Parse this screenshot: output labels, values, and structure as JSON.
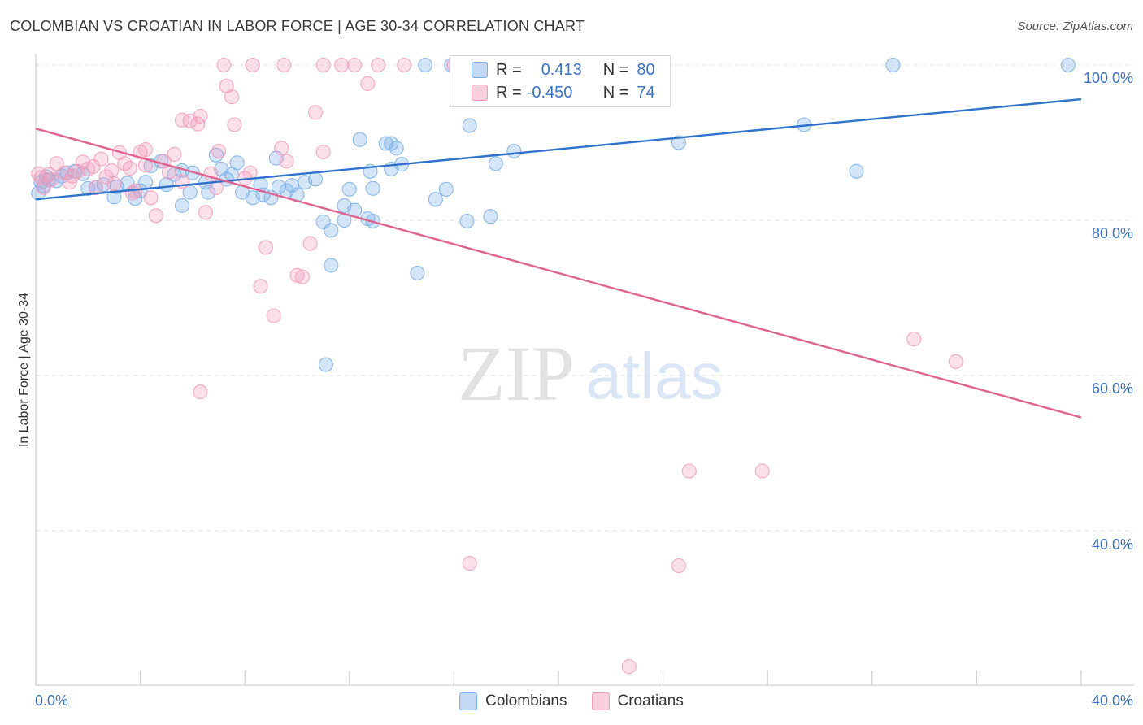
{
  "title": "COLOMBIAN VS CROATIAN IN LABOR FORCE | AGE 30-34 CORRELATION CHART",
  "source": "Source: ZipAtlas.com",
  "watermark": {
    "zip": "ZIP",
    "atlas": "atlas"
  },
  "legend": {
    "r_label": "R =",
    "n_label": "N =",
    "colombians": {
      "r": "0.413",
      "n": "80"
    },
    "croatians": {
      "r": "-0.450",
      "n": "74"
    }
  },
  "chart_data": {
    "type": "scatter",
    "title": "COLOMBIAN VS CROATIAN IN LABOR FORCE | AGE 30-34 CORRELATION CHART",
    "xlabel": "",
    "ylabel": "In Labor Force | Age 30-34",
    "xlim": [
      0,
      40
    ],
    "ylim": [
      20,
      102
    ],
    "x_tick_labels": [
      "0.0%",
      "40.0%"
    ],
    "y_ticks": [
      40,
      60,
      80,
      100
    ],
    "y_tick_labels": [
      "40.0%",
      "60.0%",
      "80.0%",
      "100.0%"
    ],
    "grid": true,
    "legend_position": "top-center",
    "series": [
      {
        "name": "Colombians",
        "color": "#7aaee8",
        "trend_color": "#2f72cc",
        "trend": {
          "x": [
            0,
            40
          ],
          "y": [
            82.7,
            95.6
          ]
        },
        "points": [
          [
            0.2,
            84.9
          ],
          [
            0.3,
            84.4
          ],
          [
            0.5,
            85.2
          ],
          [
            0.8,
            85.1
          ],
          [
            1.0,
            85.7
          ],
          [
            1.2,
            86.1
          ],
          [
            1.5,
            86.3
          ],
          [
            1.8,
            86.0
          ],
          [
            2.0,
            84.1
          ],
          [
            2.3,
            84.2
          ],
          [
            2.6,
            84.6
          ],
          [
            3.0,
            83.0
          ],
          [
            3.1,
            84.3
          ],
          [
            3.5,
            84.8
          ],
          [
            3.8,
            82.8
          ],
          [
            4.0,
            83.8
          ],
          [
            4.2,
            84.9
          ],
          [
            4.4,
            87.0
          ],
          [
            4.8,
            87.6
          ],
          [
            5.0,
            84.6
          ],
          [
            5.3,
            85.9
          ],
          [
            5.6,
            86.4
          ],
          [
            5.6,
            81.9
          ],
          [
            5.9,
            83.6
          ],
          [
            6.0,
            86.1
          ],
          [
            6.5,
            84.9
          ],
          [
            6.6,
            83.6
          ],
          [
            6.9,
            88.4
          ],
          [
            7.1,
            86.6
          ],
          [
            7.3,
            85.3
          ],
          [
            7.5,
            85.9
          ],
          [
            7.7,
            87.4
          ],
          [
            7.9,
            83.6
          ],
          [
            8.3,
            82.9
          ],
          [
            8.6,
            84.6
          ],
          [
            8.7,
            83.3
          ],
          [
            9.0,
            82.9
          ],
          [
            9.2,
            88.0
          ],
          [
            9.3,
            84.3
          ],
          [
            9.6,
            83.8
          ],
          [
            9.8,
            84.5
          ],
          [
            10.0,
            83.3
          ],
          [
            10.3,
            84.9
          ],
          [
            10.7,
            85.3
          ],
          [
            11.0,
            79.8
          ],
          [
            11.3,
            78.7
          ],
          [
            11.8,
            80.0
          ],
          [
            12.0,
            84.0
          ],
          [
            12.4,
            90.4
          ],
          [
            12.7,
            80.2
          ],
          [
            12.9,
            84.1
          ],
          [
            13.6,
            89.9
          ],
          [
            13.8,
            89.3
          ],
          [
            11.1,
            61.4
          ],
          [
            11.3,
            74.2
          ],
          [
            11.8,
            81.9
          ],
          [
            12.2,
            81.3
          ],
          [
            12.8,
            86.3
          ],
          [
            12.9,
            79.9
          ],
          [
            13.4,
            89.9
          ],
          [
            13.6,
            86.6
          ],
          [
            14.0,
            87.2
          ],
          [
            14.6,
            73.2
          ],
          [
            15.3,
            82.7
          ],
          [
            15.7,
            84.0
          ],
          [
            16.5,
            79.9
          ],
          [
            16.6,
            92.2
          ],
          [
            17.4,
            80.5
          ],
          [
            17.6,
            87.3
          ],
          [
            18.3,
            88.9
          ],
          [
            14.9,
            100.0
          ],
          [
            15.9,
            100.0
          ],
          [
            21.2,
            100.0
          ],
          [
            24.6,
            90.0
          ],
          [
            29.4,
            92.3
          ],
          [
            31.4,
            86.3
          ],
          [
            32.8,
            100.0
          ],
          [
            39.5,
            100.0
          ],
          [
            0.1,
            83.5
          ],
          [
            0.4,
            85.6
          ]
        ]
      },
      {
        "name": "Croatians",
        "color": "#f29cba",
        "trend_color": "#e0638f",
        "trend": {
          "x": [
            0,
            40
          ],
          "y": [
            91.8,
            54.6
          ]
        },
        "points": [
          [
            0.1,
            86.0
          ],
          [
            0.3,
            84.2
          ],
          [
            0.5,
            85.9
          ],
          [
            0.8,
            87.3
          ],
          [
            1.1,
            86.1
          ],
          [
            1.4,
            85.7
          ],
          [
            1.8,
            87.5
          ],
          [
            2.0,
            86.6
          ],
          [
            2.3,
            84.2
          ],
          [
            2.5,
            87.9
          ],
          [
            2.7,
            85.6
          ],
          [
            3.0,
            84.7
          ],
          [
            3.2,
            88.7
          ],
          [
            3.4,
            87.3
          ],
          [
            3.6,
            86.7
          ],
          [
            3.8,
            83.8
          ],
          [
            4.0,
            88.8
          ],
          [
            4.2,
            89.1
          ],
          [
            4.4,
            82.9
          ],
          [
            4.6,
            80.6
          ],
          [
            4.9,
            87.6
          ],
          [
            5.1,
            86.2
          ],
          [
            5.3,
            88.5
          ],
          [
            5.6,
            92.9
          ],
          [
            5.9,
            92.8
          ],
          [
            6.2,
            92.4
          ],
          [
            6.3,
            93.4
          ],
          [
            6.5,
            81.0
          ],
          [
            6.7,
            86.0
          ],
          [
            7.0,
            88.9
          ],
          [
            7.3,
            97.3
          ],
          [
            7.5,
            95.9
          ],
          [
            7.6,
            92.3
          ],
          [
            8.0,
            85.4
          ],
          [
            8.2,
            86.1
          ],
          [
            8.6,
            71.5
          ],
          [
            8.8,
            76.5
          ],
          [
            9.1,
            67.7
          ],
          [
            9.4,
            89.3
          ],
          [
            9.6,
            87.6
          ],
          [
            10.0,
            72.9
          ],
          [
            10.2,
            72.7
          ],
          [
            10.5,
            77.0
          ],
          [
            10.7,
            93.9
          ],
          [
            11.0,
            88.8
          ],
          [
            6.3,
            57.9
          ],
          [
            7.2,
            100.0
          ],
          [
            8.3,
            100.0
          ],
          [
            9.5,
            100.0
          ],
          [
            11.0,
            100.0
          ],
          [
            11.7,
            100.0
          ],
          [
            12.2,
            100.0
          ],
          [
            12.7,
            97.6
          ],
          [
            13.1,
            100.0
          ],
          [
            14.1,
            100.0
          ],
          [
            16.0,
            100.0
          ],
          [
            16.6,
            35.8
          ],
          [
            17.5,
            100.0
          ],
          [
            25.0,
            47.7
          ],
          [
            27.8,
            47.7
          ],
          [
            24.6,
            35.5
          ],
          [
            33.6,
            64.7
          ],
          [
            35.2,
            61.8
          ],
          [
            22.7,
            22.5
          ],
          [
            2.9,
            86.4
          ],
          [
            1.3,
            84.9
          ],
          [
            0.6,
            85.2
          ],
          [
            3.7,
            83.5
          ],
          [
            5.6,
            85.0
          ],
          [
            6.9,
            84.2
          ],
          [
            4.2,
            87.1
          ],
          [
            2.2,
            86.9
          ],
          [
            1.6,
            86.3
          ],
          [
            0.2,
            85.5
          ]
        ]
      }
    ]
  }
}
